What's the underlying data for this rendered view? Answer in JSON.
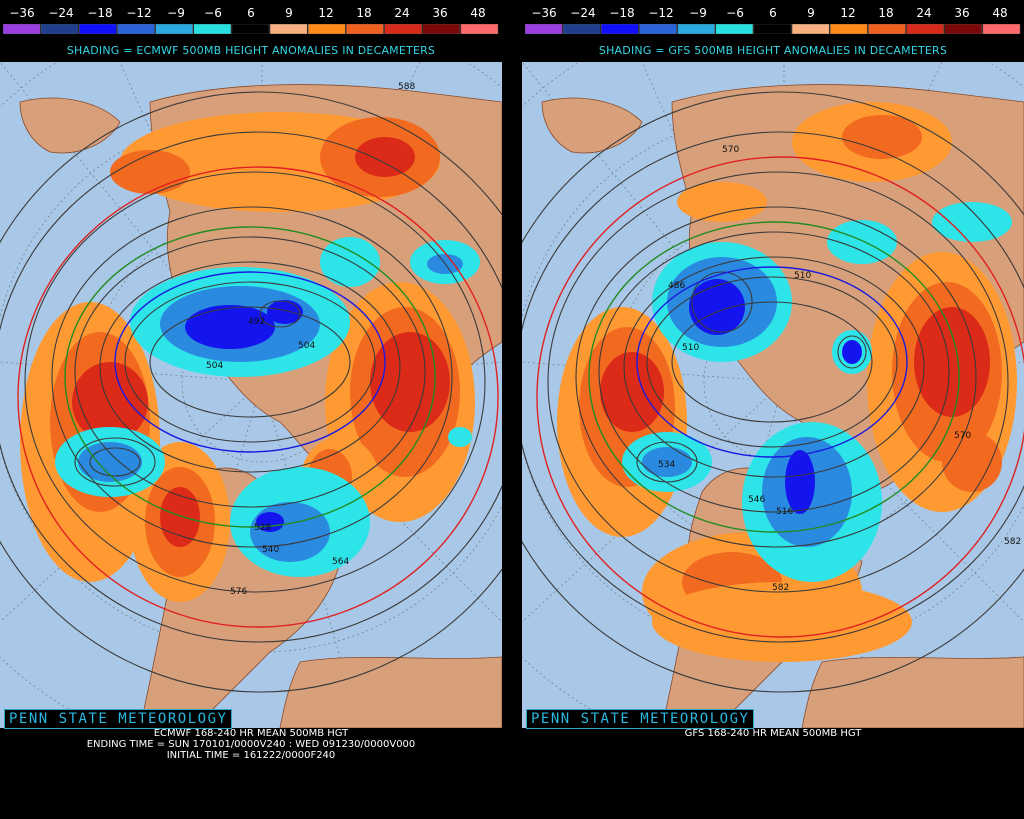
{
  "scale": {
    "labels": [
      "−36",
      "−24",
      "−18",
      "−12",
      "−9",
      "−6",
      "6",
      "9",
      "12",
      "18",
      "24",
      "36",
      "48"
    ],
    "colors": [
      "#9b3fe0",
      "#1e3f8c",
      "#1010ff",
      "#2a64d8",
      "#2aaae0",
      "#28e0e0",
      "#000000",
      "#f8b080",
      "#ff8a1a",
      "#f06020",
      "#d82a1a",
      "#7a0a0a",
      "#ff6b6b"
    ]
  },
  "palette": {
    "ocean": "#a9c8e8",
    "land": "#d8a07a",
    "orange": "#ff9a33",
    "orange_dark": "#f26a1f",
    "red": "#dc2a18",
    "cyan": "#2de4e8",
    "blue_mid": "#2a8ae0",
    "blue_dark": "#1414ee",
    "contour": "#3a3a3a",
    "contour_red": "#e02020",
    "contour_green": "#228b22",
    "contour_blue": "#1a1ae0"
  },
  "left": {
    "shading_title": "SHADING = ECMWF 500MB HEIGHT ANOMALIES IN DECAMETERS",
    "brand": "PENN STATE METEOROLOGY",
    "caption_lines": [
      "ECMWF 168-240 HR MEAN 500MB HGT",
      "ENDING TIME = SUN 170101/0000V240 : WED 091230/0000V000",
      "INITIAL TIME = 161222/0000F240"
    ],
    "contour_labels": [
      "588",
      "492",
      "504",
      "504",
      "540",
      "528",
      "564",
      "576"
    ]
  },
  "right": {
    "shading_title": "SHADING = GFS 500MB HEIGHT ANOMALIES IN DECAMETERS",
    "brand": "PENN STATE METEOROLOGY",
    "caption_lines": [
      "GFS 168-240 HR MEAN 500MB HGT"
    ],
    "contour_labels": [
      "570",
      "486",
      "510",
      "510",
      "534",
      "546",
      "516",
      "582",
      "570",
      "582"
    ]
  }
}
